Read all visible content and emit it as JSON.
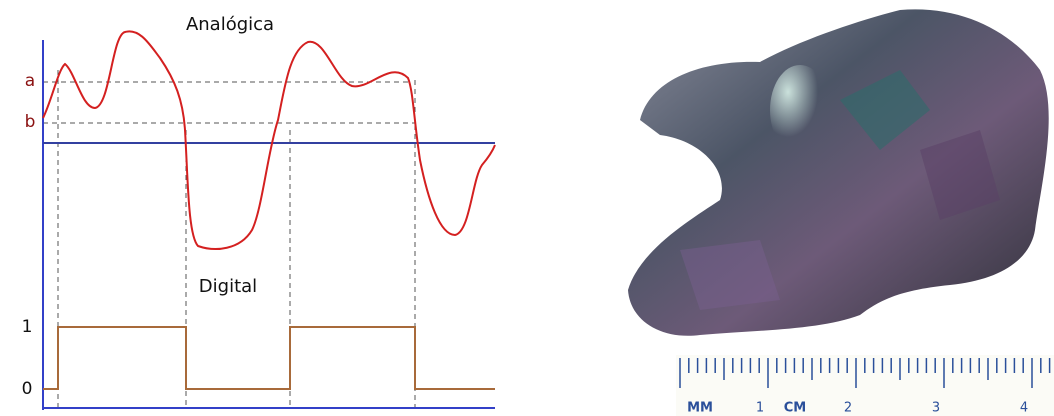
{
  "diagram": {
    "analog_title": "Analógica",
    "digital_title": "Digital",
    "level_a": "a",
    "level_b": "b",
    "digital_high": "1",
    "digital_low": "0"
  },
  "photo": {
    "ruler": {
      "unit_mm": "MM",
      "unit_cm": "CM",
      "labels": [
        "1",
        "2",
        "3",
        "4"
      ]
    }
  }
}
